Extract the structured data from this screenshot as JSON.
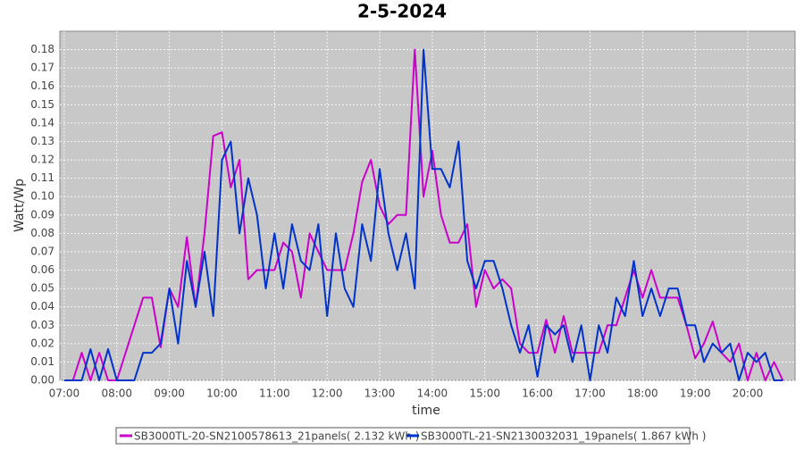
{
  "chart_data": {
    "type": "line",
    "title": "2-5-2024",
    "xlabel": "time",
    "ylabel": "Watt/Wp",
    "x": [
      420,
      430,
      440,
      450,
      460,
      470,
      480,
      490,
      500,
      510,
      520,
      530,
      540,
      550,
      560,
      570,
      580,
      590,
      600,
      610,
      620,
      630,
      640,
      650,
      660,
      670,
      680,
      690,
      700,
      710,
      720,
      730,
      740,
      750,
      760,
      770,
      780,
      790,
      800,
      810,
      820,
      830,
      840,
      850,
      860,
      870,
      880,
      890,
      900,
      910,
      920,
      930,
      940,
      950,
      960,
      970,
      980,
      990,
      1000,
      1010,
      1020,
      1030,
      1040,
      1050,
      1060,
      1070,
      1080,
      1090,
      1100,
      1110,
      1120,
      1130,
      1140,
      1150,
      1160,
      1170,
      1180,
      1190,
      1200,
      1210,
      1220,
      1230,
      1240
    ],
    "series": [
      {
        "name": "SB3000TL-20-SN2100578613_21panels( 2.132 kWh )",
        "color": "#cc00cc",
        "values": [
          0,
          0,
          0.015,
          0,
          0.015,
          0,
          0,
          0.015,
          0.03,
          0.045,
          0.045,
          0.018,
          0.05,
          0.04,
          0.078,
          0.04,
          0.08,
          0.133,
          0.135,
          0.105,
          0.12,
          0.055,
          0.06,
          0.06,
          0.06,
          0.075,
          0.07,
          0.045,
          0.08,
          0.07,
          0.06,
          0.06,
          0.06,
          0.08,
          0.108,
          0.12,
          0.095,
          0.085,
          0.09,
          0.09,
          0.18,
          0.1,
          0.125,
          0.09,
          0.075,
          0.075,
          0.085,
          0.04,
          0.06,
          0.05,
          0.055,
          0.05,
          0.02,
          0.015,
          0.015,
          0.033,
          0.015,
          0.035,
          0.015,
          0.015,
          0.015,
          0.015,
          0.03,
          0.03,
          0.045,
          0.06,
          0.045,
          0.06,
          0.045,
          0.045,
          0.045,
          0.03,
          0.012,
          0.02,
          0.032,
          0.015,
          0.01,
          0.02,
          0,
          0.015,
          0,
          0.01,
          0
        ]
      },
      {
        "name": "SB3000TL-21-SN2130032031_19panels( 1.867 kWh )",
        "color": "#0033cc",
        "values": [
          0,
          0,
          0,
          0.017,
          0,
          0.017,
          0,
          0,
          0,
          0.015,
          0.015,
          0.02,
          0.05,
          0.02,
          0.065,
          0.04,
          0.07,
          0.035,
          0.12,
          0.13,
          0.08,
          0.11,
          0.09,
          0.05,
          0.08,
          0.05,
          0.085,
          0.065,
          0.06,
          0.085,
          0.035,
          0.08,
          0.05,
          0.04,
          0.085,
          0.065,
          0.115,
          0.08,
          0.06,
          0.08,
          0.05,
          0.18,
          0.115,
          0.115,
          0.105,
          0.13,
          0.065,
          0.05,
          0.065,
          0.065,
          0.05,
          0.03,
          0.015,
          0.03,
          0.002,
          0.03,
          0.025,
          0.03,
          0.01,
          0.03,
          0,
          0.03,
          0.015,
          0.045,
          0.035,
          0.065,
          0.035,
          0.05,
          0.035,
          0.05,
          0.05,
          0.03,
          0.03,
          0.01,
          0.02,
          0.015,
          0.02,
          0,
          0.015,
          0.01,
          0.015,
          0,
          0
        ]
      }
    ],
    "xlim": [
      415,
      1254
    ],
    "xticks": [
      {
        "value": 420,
        "label": "07:00"
      },
      {
        "value": 480,
        "label": "08:00"
      },
      {
        "value": 540,
        "label": "09:00"
      },
      {
        "value": 600,
        "label": "10:00"
      },
      {
        "value": 660,
        "label": "11:00"
      },
      {
        "value": 720,
        "label": "12:00"
      },
      {
        "value": 780,
        "label": "13:00"
      },
      {
        "value": 840,
        "label": "14:00"
      },
      {
        "value": 900,
        "label": "15:00"
      },
      {
        "value": 960,
        "label": "16:00"
      },
      {
        "value": 1020,
        "label": "17:00"
      },
      {
        "value": 1080,
        "label": "18:00"
      },
      {
        "value": 1140,
        "label": "19:00"
      },
      {
        "value": 1200,
        "label": "20:00"
      }
    ],
    "ylim": [
      0,
      0.19
    ],
    "yticks": [
      {
        "value": 0,
        "label": "0.00"
      },
      {
        "value": 0.01,
        "label": "0.01"
      },
      {
        "value": 0.02,
        "label": "0.02"
      },
      {
        "value": 0.03,
        "label": "0.03"
      },
      {
        "value": 0.04,
        "label": "0.04"
      },
      {
        "value": 0.05,
        "label": "0.05"
      },
      {
        "value": 0.06,
        "label": "0.06"
      },
      {
        "value": 0.07,
        "label": "0.07"
      },
      {
        "value": 0.08,
        "label": "0.08"
      },
      {
        "value": 0.09,
        "label": "0.09"
      },
      {
        "value": 0.1,
        "label": "0.10"
      },
      {
        "value": 0.11,
        "label": "0.11"
      },
      {
        "value": 0.12,
        "label": "0.12"
      },
      {
        "value": 0.13,
        "label": "0.13"
      },
      {
        "value": 0.14,
        "label": "0.14"
      },
      {
        "value": 0.15,
        "label": "0.15"
      },
      {
        "value": 0.16,
        "label": "0.16"
      },
      {
        "value": 0.17,
        "label": "0.17"
      },
      {
        "value": 0.18,
        "label": "0.18"
      }
    ],
    "grid": true
  }
}
